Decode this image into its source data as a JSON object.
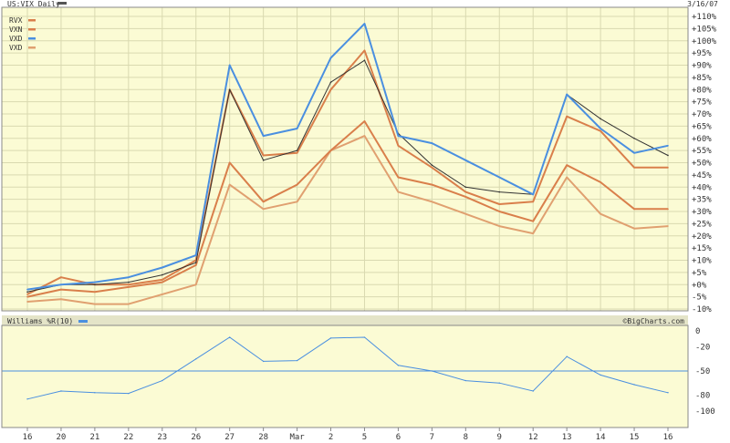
{
  "colors": {
    "panel_bg": "#fbfbd4",
    "grid": "#d9d9b0",
    "frame": "#888888",
    "page_bg": "#ffffff",
    "rvx": "#d97f4b",
    "vxn": "#d97f4b",
    "vxd": "#4a8fe0",
    "vxd2": "#e0a070",
    "overlay": "#333333",
    "williams": "#4a8fe0",
    "williams_ref": "#4a8fe0"
  },
  "header": {
    "title": "US:VIX Daily",
    "date": "3/16/07"
  },
  "chart_data": [
    {
      "type": "line",
      "x": [
        "16",
        "20",
        "21",
        "22",
        "23",
        "26",
        "27",
        "28",
        "Mar",
        "2",
        "5",
        "6",
        "7",
        "8",
        "9",
        "12",
        "13",
        "14",
        "15",
        "16"
      ],
      "ylim": [
        -10,
        110
      ],
      "yticks": [
        "+110%",
        "+105%",
        "+100%",
        "+95%",
        "+90%",
        "+85%",
        "+80%",
        "+75%",
        "+70%",
        "+65%",
        "+60%",
        "+55%",
        "+50%",
        "+45%",
        "+40%",
        "+35%",
        "+30%",
        "+25%",
        "+20%",
        "+15%",
        "+10%",
        "+5%",
        "+0%",
        "-5%",
        "-10%"
      ],
      "legend_position": "top-left",
      "grid": true,
      "series": [
        {
          "name": "RVX",
          "color": "#d97f4b",
          "values": [
            -4,
            3,
            0,
            0,
            2,
            10,
            80,
            53,
            54,
            80,
            96,
            57,
            48,
            38,
            33,
            34,
            69,
            63,
            48,
            48
          ]
        },
        {
          "name": "VXN",
          "color": "#d97f4b",
          "values": [
            -5,
            -2,
            -3,
            -1,
            1,
            8,
            50,
            34,
            41,
            55,
            67,
            44,
            41,
            36,
            30,
            26,
            49,
            42,
            31,
            31
          ]
        },
        {
          "name": "VXD",
          "color": "#4a8fe0",
          "values": [
            -2,
            0,
            1,
            3,
            7,
            12,
            90,
            61,
            64,
            93,
            107,
            61,
            58,
            51,
            44,
            37,
            78,
            64,
            54,
            57
          ]
        },
        {
          "name": "VXD",
          "color": "#e0a070",
          "values": [
            -7,
            -6,
            -8,
            -8,
            -4,
            0,
            41,
            31,
            34,
            55,
            61,
            38,
            34,
            29,
            24,
            21,
            44,
            29,
            23,
            24
          ]
        },
        {
          "color": "#333333",
          "values": [
            -3,
            0,
            0,
            1,
            4,
            9,
            80,
            51,
            55,
            83,
            92,
            62,
            49,
            40,
            38,
            37,
            78,
            68,
            60,
            53
          ]
        }
      ]
    },
    {
      "type": "line",
      "ylim": [
        -100,
        0
      ],
      "yticks": [
        "0",
        "-20",
        "-50",
        "-80",
        "-100"
      ],
      "reference_line": -50,
      "series": [
        {
          "name": "Williams %R(10)",
          "color": "#4a8fe0",
          "values": [
            -85,
            -75,
            -77,
            -78,
            -62,
            -35,
            -8,
            -38,
            -37,
            -9,
            -8,
            -43,
            -50,
            -62,
            -65,
            -75,
            -32,
            -55,
            -67,
            -77
          ]
        }
      ]
    }
  ],
  "footer": {
    "credit": "©BigCharts.com"
  }
}
